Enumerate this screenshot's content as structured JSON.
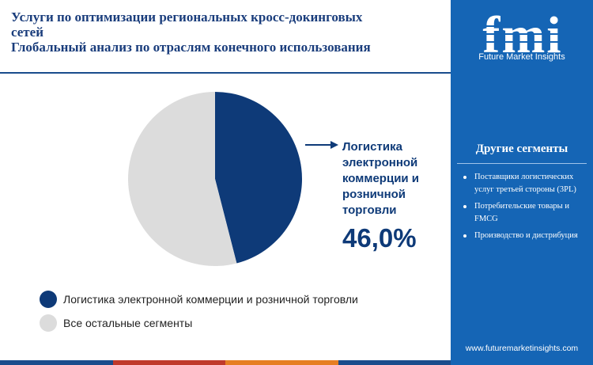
{
  "title": {
    "line1": "Услуги по оптимизации региональных кросс-докинговых",
    "line2": "сетей",
    "line3": "Глобальный анализ по отраслям конечного использования"
  },
  "chart_data": {
    "type": "pie",
    "slices": [
      {
        "label": "Логистика электронной коммерции и розничной торговли",
        "value": 46.0,
        "color": "#0e3a78"
      },
      {
        "label": "Все остальные сегменты",
        "value": 54.0,
        "color": "#dcdcdc"
      }
    ]
  },
  "callout": {
    "label": "Логистика электронной коммерции и розничной торговли",
    "value": "46,0%"
  },
  "legend": [
    {
      "label": "Логистика электронной коммерции и розничной торговли",
      "color": "#0e3a78"
    },
    {
      "label": "Все остальные сегменты",
      "color": "#dcdcdc"
    }
  ],
  "sidebar": {
    "logo_letters": "fmi",
    "logo_text": "Future Market Insights",
    "segments_title": "Другие сегменты",
    "segments": [
      "Поставщики логистических услуг третьей стороны (3PL)",
      "Потребительские товары и FMCG",
      "Производство и дистрибуция"
    ],
    "website": "www.futuremarketinsights.com"
  },
  "colors": {
    "primary": "#0e3a78",
    "sidebar": "#1565b5",
    "other": "#dcdcdc",
    "bar_colors": [
      "#1a4c8c",
      "#c0392b",
      "#e67e22",
      "#1a4c8c"
    ]
  }
}
